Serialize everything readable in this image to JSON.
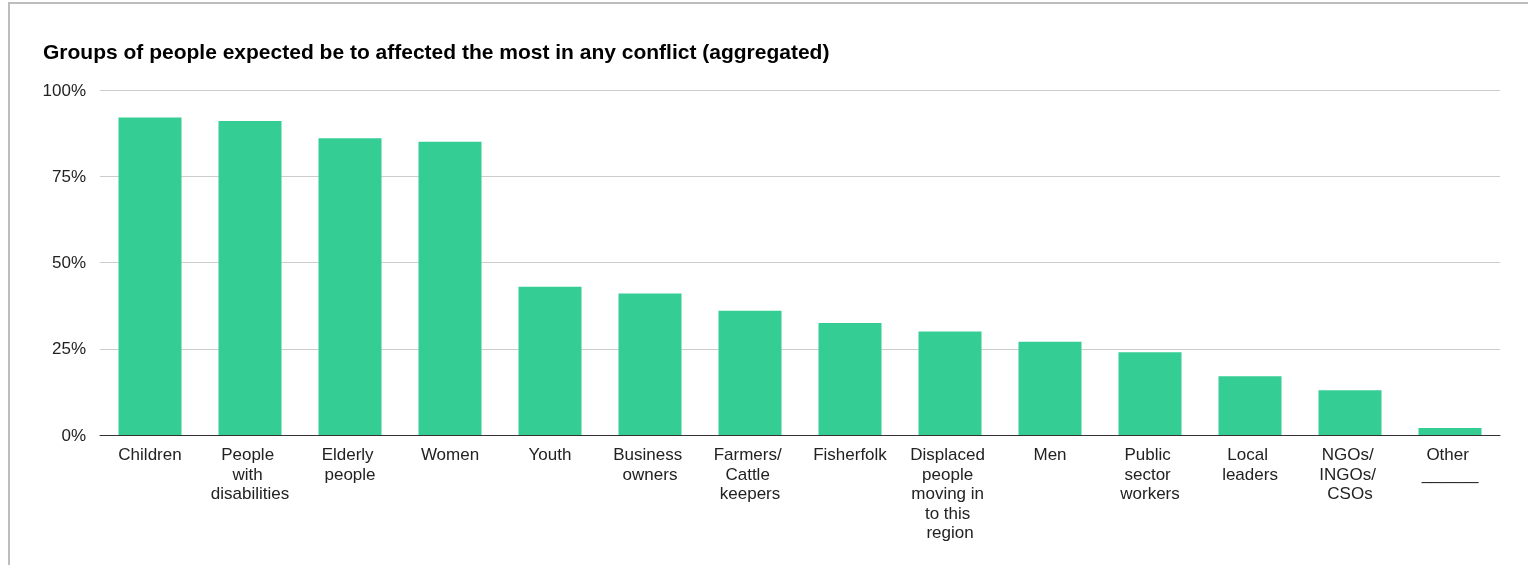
{
  "chart_data": {
    "type": "bar",
    "title": "Groups of people expected be to affected the most in any conflict (aggregated)",
    "categories": [
      "Children",
      "People with disabilities",
      "Elderly people",
      "Women",
      "Youth",
      "Business owners",
      "Farmers/ Cattle keepers",
      "Fisherfolk",
      "Displaced people moving in to this region",
      "Men",
      "Public sector workers",
      "Local leaders",
      "NGOs/ INGOs/ CSOs",
      "Other ______"
    ],
    "values": [
      92,
      91,
      86,
      85,
      43,
      41,
      36,
      32.5,
      30,
      27,
      24,
      17,
      13,
      2
    ],
    "color": "#34cd93",
    "ylim": [
      0,
      100
    ],
    "yticks": [
      {
        "value": 0,
        "label": "0%"
      },
      {
        "value": 25,
        "label": "25%"
      },
      {
        "value": 50,
        "label": "50%"
      },
      {
        "value": 75,
        "label": "75%"
      },
      {
        "value": 100,
        "label": "100%"
      }
    ],
    "grid": "y"
  }
}
